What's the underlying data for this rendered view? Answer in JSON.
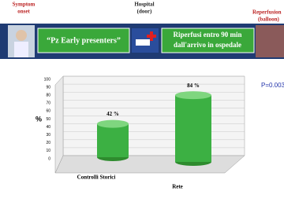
{
  "header": {
    "steps": [
      {
        "title": "Symptom",
        "subtitle": "onset"
      },
      {
        "title": "Hospital",
        "subtitle": "(door)"
      },
      {
        "title": "Reperfusion",
        "subtitle": "(balloon)"
      }
    ],
    "box_left": "“Pz Early presenters”",
    "box_right_line1": "Riperfusi entro 90 min",
    "box_right_line2": "dall'arrivo in ospedale"
  },
  "p_value": "P=0.003",
  "chart_data": {
    "type": "bar",
    "ylabel": "%",
    "categories": [
      "Controlli Storici",
      "Rete"
    ],
    "values": [
      42,
      84
    ],
    "value_labels": [
      "42 %",
      "84 %"
    ],
    "color": "#3cb043",
    "ylim": [
      0,
      100
    ],
    "yticks": [
      0,
      10,
      20,
      30,
      40,
      50,
      60,
      70,
      80,
      90,
      100
    ],
    "grid": true
  }
}
